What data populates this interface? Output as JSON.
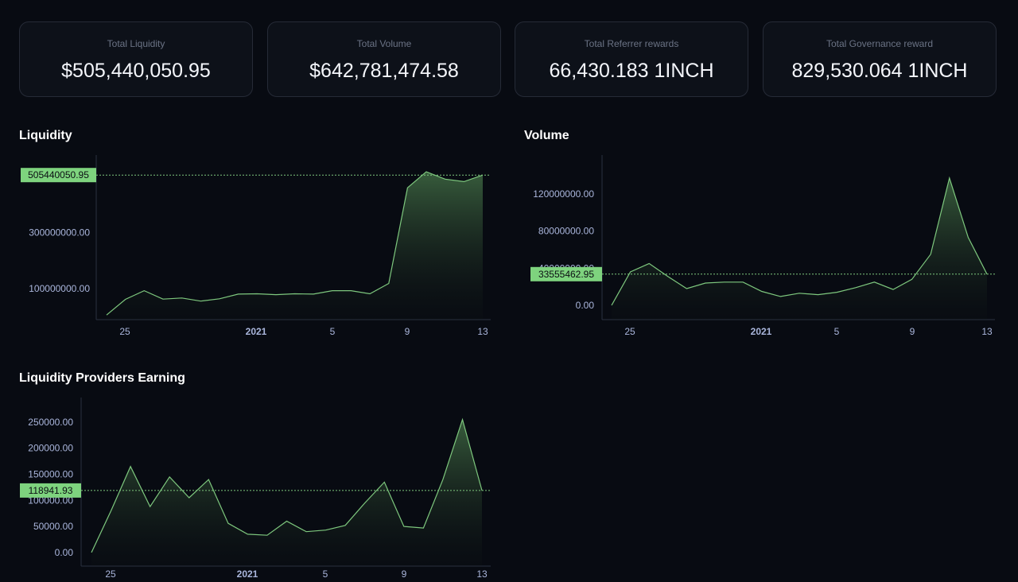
{
  "stats": [
    {
      "label": "Total Liquidity",
      "value": "$505,440,050.95"
    },
    {
      "label": "Total Volume",
      "value": "$642,781,474.58"
    },
    {
      "label": "Total Referrer rewards",
      "value": "66,430.183 1INCH"
    },
    {
      "label": "Total Governance reward",
      "value": "829,530.064 1INCH"
    }
  ],
  "colors": {
    "line": "#7ec87e",
    "label_bg": "#7ed37e",
    "tick": "#aab6dc",
    "axis": "#2a3040"
  },
  "chart_data": [
    {
      "type": "area",
      "title": "Liquidity",
      "x_ticks": [
        "25",
        "2021",
        "5",
        "9",
        "13"
      ],
      "y_ticks": [
        "100000000.00",
        "300000000.00"
      ],
      "ylim": [
        0,
        560000000
      ],
      "values": [
        5000000,
        61000000,
        92000000,
        62000000,
        66000000,
        55000000,
        63000000,
        80000000,
        81000000,
        78000000,
        81000000,
        80000000,
        92000000,
        92000000,
        81000000,
        118000000,
        460000000,
        517000000,
        491000000,
        482000000,
        505440050.95
      ],
      "last_value_label": "505440050.95",
      "last_value": 505440050.95
    },
    {
      "type": "area",
      "title": "Volume",
      "x_ticks": [
        "25",
        "2021",
        "5",
        "9",
        "13"
      ],
      "y_ticks": [
        "0.00",
        "40000000.00",
        "80000000.00",
        "120000000.00"
      ],
      "ylim": [
        -12000000,
        155000000
      ],
      "values": [
        0,
        36000000,
        45000000,
        31000000,
        18000000,
        24000000,
        25000000,
        25000000,
        15000000,
        9500000,
        13000000,
        11500000,
        14000000,
        19000000,
        25000000,
        17000000,
        28000000,
        55000000,
        137000000,
        73000000,
        33555462.95
      ],
      "last_value_label": "33555462.95",
      "last_value": 33555462.95
    },
    {
      "type": "area",
      "title": "Liquidity Providers Earning",
      "x_ticks": [
        "25",
        "2021",
        "5",
        "9",
        "13"
      ],
      "y_ticks": [
        "0.00",
        "50000.00",
        "100000.00",
        "150000.00",
        "200000.00",
        "250000.00"
      ],
      "ylim": [
        -20000,
        285000
      ],
      "values": [
        0,
        80000,
        165000,
        88000,
        145000,
        105000,
        140000,
        56000,
        35000,
        33000,
        60000,
        40000,
        43000,
        52000,
        95000,
        135000,
        50000,
        47000,
        140000,
        255000,
        118941.93
      ],
      "last_value_label": "118941.93",
      "last_value": 118941.93
    }
  ]
}
